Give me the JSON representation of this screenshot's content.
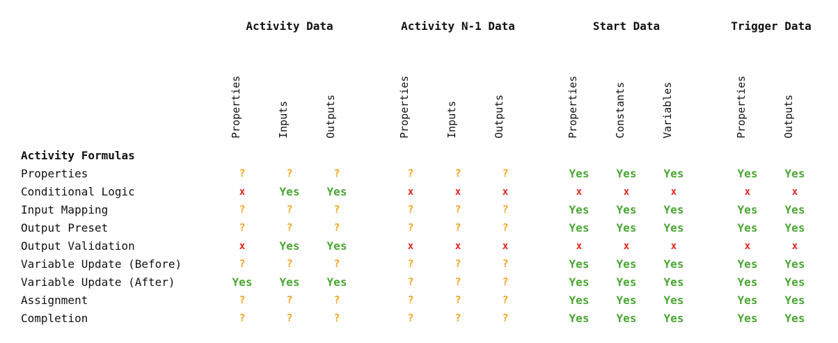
{
  "groups": [
    {
      "title": "Activity Data",
      "columns": [
        "Properties",
        "Inputs",
        "Outputs"
      ]
    },
    {
      "title": "Activity N-1 Data",
      "columns": [
        "Properties",
        "Inputs",
        "Outputs"
      ]
    },
    {
      "title": "Start Data",
      "columns": [
        "Properties",
        "Constants",
        "Variables"
      ]
    },
    {
      "title": "Trigger Data",
      "columns": [
        "Properties",
        "Outputs"
      ]
    }
  ],
  "section_label": "Activity Formulas",
  "rows": [
    {
      "label": "Properties",
      "values": [
        "?",
        "?",
        "?",
        "?",
        "?",
        "?",
        "Yes",
        "Yes",
        "Yes",
        "Yes",
        "Yes"
      ]
    },
    {
      "label": "Conditional Logic",
      "values": [
        "x",
        "Yes",
        "Yes",
        "x",
        "x",
        "x",
        "x",
        "x",
        "x",
        "x",
        "x"
      ]
    },
    {
      "label": "Input Mapping",
      "values": [
        "?",
        "?",
        "?",
        "?",
        "?",
        "?",
        "Yes",
        "Yes",
        "Yes",
        "Yes",
        "Yes"
      ]
    },
    {
      "label": "Output Preset",
      "values": [
        "?",
        "?",
        "?",
        "?",
        "?",
        "?",
        "Yes",
        "Yes",
        "Yes",
        "Yes",
        "Yes"
      ]
    },
    {
      "label": "Output Validation",
      "values": [
        "x",
        "Yes",
        "Yes",
        "x",
        "x",
        "x",
        "x",
        "x",
        "x",
        "x",
        "x"
      ]
    },
    {
      "label": "Variable Update (Before)",
      "values": [
        "?",
        "?",
        "?",
        "?",
        "?",
        "?",
        "Yes",
        "Yes",
        "Yes",
        "Yes",
        "Yes"
      ]
    },
    {
      "label": "Variable Update (After)",
      "values": [
        "Yes",
        "Yes",
        "Yes",
        "?",
        "?",
        "?",
        "Yes",
        "Yes",
        "Yes",
        "Yes",
        "Yes"
      ]
    },
    {
      "label": "Assignment",
      "values": [
        "?",
        "?",
        "?",
        "?",
        "?",
        "?",
        "Yes",
        "Yes",
        "Yes",
        "Yes",
        "Yes"
      ]
    },
    {
      "label": "Completion",
      "values": [
        "?",
        "?",
        "?",
        "?",
        "?",
        "?",
        "Yes",
        "Yes",
        "Yes",
        "Yes",
        "Yes"
      ]
    }
  ],
  "colors": {
    "yes": "#4aa633",
    "no": "#e2231a",
    "unknown": "#f5a623"
  }
}
